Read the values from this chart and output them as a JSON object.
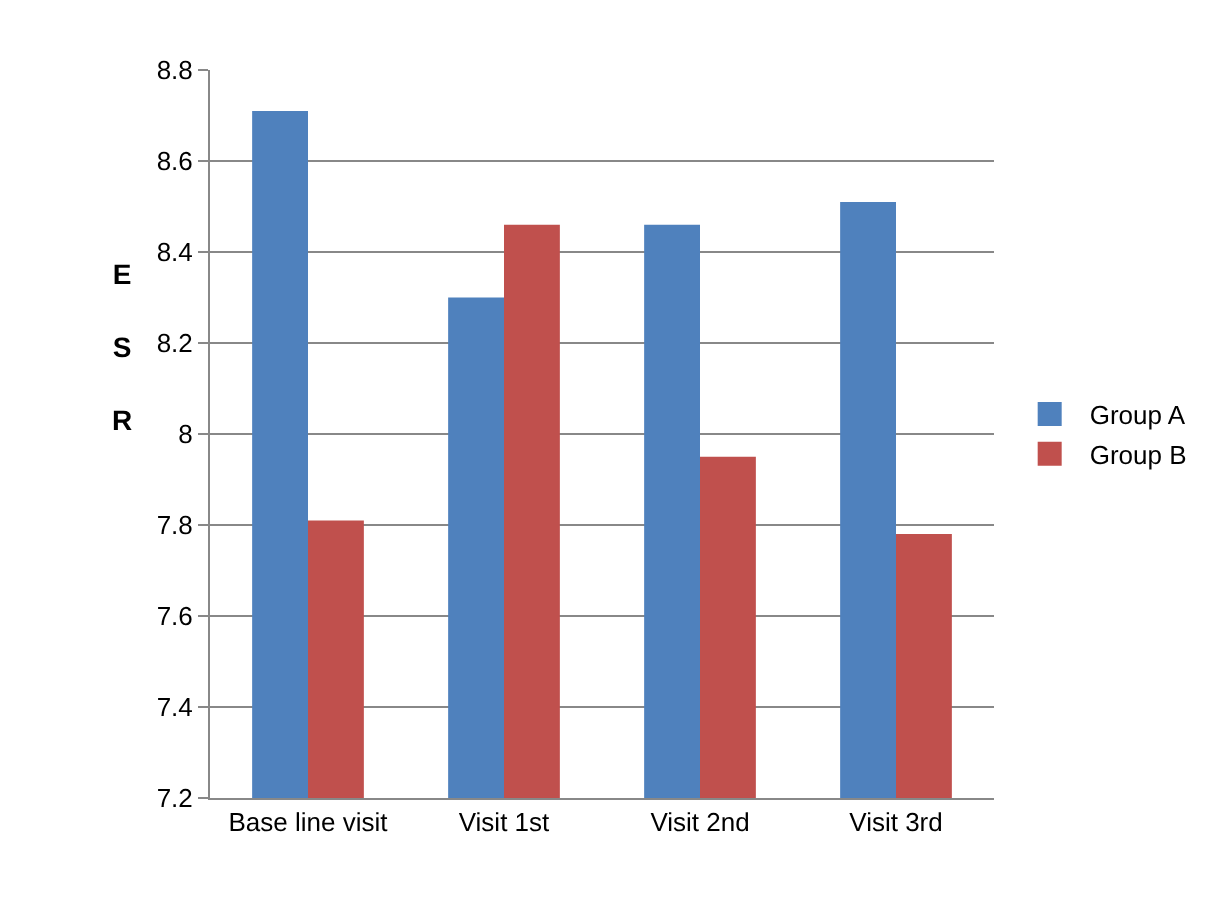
{
  "chart_data": {
    "type": "bar",
    "ylabel": "ESR",
    "categories": [
      "Base line visit",
      "Visit 1st",
      "Visit 2nd",
      "Visit 3rd"
    ],
    "series": [
      {
        "name": "Group A",
        "color": "#4f81bd",
        "values": [
          8.71,
          8.3,
          8.46,
          8.51
        ]
      },
      {
        "name": "Group B",
        "color": "#c0504d",
        "values": [
          7.81,
          8.46,
          7.95,
          7.78
        ]
      }
    ],
    "ylim": [
      7.2,
      8.8
    ],
    "yticks": [
      7.2,
      7.4,
      7.6,
      7.8,
      {
        "value": 8,
        "label": "8"
      },
      8.2,
      8.4,
      8.6,
      8.8
    ],
    "grid": "y",
    "legend": "right"
  }
}
